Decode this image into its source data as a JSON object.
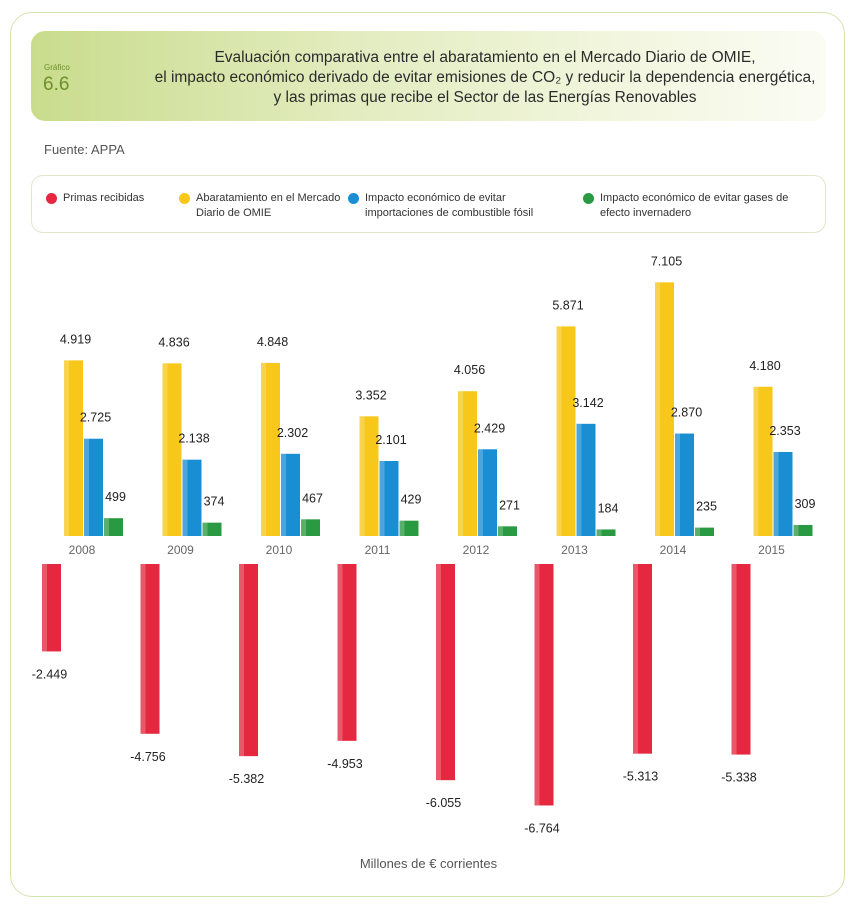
{
  "header": {
    "graph_label": "Gráfico",
    "graph_number": "6.6",
    "title_lines": [
      "Evaluación comparativa entre el abaratamiento en el Mercado Diario de OMIE,",
      "el impacto económico derivado de evitar emisiones de CO₂ y reducir la dependencia energética,",
      "y las primas que recibe el Sector de las Energías Renovables"
    ]
  },
  "source": "Fuente: APPA",
  "legend": [
    {
      "label": "Primas recibidas",
      "color": "#e5283f"
    },
    {
      "label": "Abaratamiento en el Mercado Diario de OMIE",
      "color": "#f7c71a"
    },
    {
      "label": "Impacto económico de evitar importaciones de combustible fósil",
      "color": "#1a8ed3"
    },
    {
      "label": "Impacto económico de evitar gases de efecto invernadero",
      "color": "#2a9a42"
    }
  ],
  "chart_data": {
    "type": "bar",
    "categories": [
      "2008",
      "2009",
      "2010",
      "2011",
      "2012",
      "2013",
      "2014",
      "2015"
    ],
    "series": [
      {
        "name": "Primas recibidas",
        "color": "#e5283f",
        "values": [
          -2449,
          -4756,
          -5382,
          -4953,
          -6055,
          -6764,
          -5313,
          -5338
        ],
        "labels": [
          "-2.449",
          "-4.756",
          "-5.382",
          "-4.953",
          "-6.055",
          "-6.764",
          "-5.313",
          "-5.338"
        ]
      },
      {
        "name": "Abaratamiento en el Mercado Diario de OMIE",
        "color": "#f7c71a",
        "values": [
          4919,
          4836,
          4848,
          3352,
          4056,
          5871,
          7105,
          4180
        ],
        "labels": [
          "4.919",
          "4.836",
          "4.848",
          "3.352",
          "4.056",
          "5.871",
          "7.105",
          "4.180"
        ]
      },
      {
        "name": "Impacto económico de evitar importaciones de combustible fósil",
        "color": "#1a8ed3",
        "values": [
          2725,
          2138,
          2302,
          2101,
          2429,
          3142,
          2870,
          2353
        ],
        "labels": [
          "2.725",
          "2.138",
          "2.302",
          "2.101",
          "2.429",
          "3.142",
          "2.870",
          "2.353"
        ]
      },
      {
        "name": "Impacto económico de evitar gases de efecto invernadero",
        "color": "#2a9a42",
        "values": [
          499,
          374,
          467,
          429,
          271,
          184,
          235,
          309
        ],
        "labels": [
          "499",
          "374",
          "467",
          "429",
          "271",
          "184",
          "235",
          "309"
        ]
      }
    ],
    "units": "Millones de € corrientes"
  }
}
